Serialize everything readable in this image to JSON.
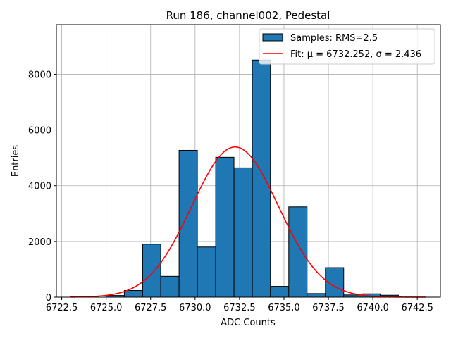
{
  "chart_data": {
    "type": "bar",
    "title": "Run 186, channel002, Pedestal",
    "xlabel": "ADC Counts",
    "ylabel": "Entries",
    "xlim": [
      6722.2,
      6743.8
    ],
    "ylim": [
      0,
      9780
    ],
    "grid": true,
    "legend_placement": "top-right",
    "x_ticks": [
      "6722.5",
      "6725.0",
      "6727.5",
      "6730.0",
      "6732.5",
      "6735.0",
      "6737.5",
      "6740.0",
      "6742.5"
    ],
    "x_tick_values": [
      6722.5,
      6725.0,
      6727.5,
      6730.0,
      6732.5,
      6735.0,
      6737.5,
      6740.0,
      6742.5
    ],
    "y_ticks": [
      "0",
      "2000",
      "4000",
      "6000",
      "8000"
    ],
    "y_tick_values": [
      0,
      2000,
      4000,
      6000,
      8000
    ],
    "bin_edges": [
      6724.99,
      6726.02,
      6727.05,
      6728.07,
      6729.1,
      6730.13,
      6731.16,
      6732.19,
      6733.22,
      6734.24,
      6735.27,
      6736.3,
      6737.33,
      6738.36,
      6739.38,
      6740.41,
      6741.44
    ],
    "counts": [
      60,
      240,
      1900,
      750,
      5270,
      1800,
      5020,
      4640,
      8510,
      390,
      3240,
      130,
      1060,
      80,
      120,
      70
    ],
    "histogram_name": "Samples: RMS=2.5",
    "fit": {
      "name": "Fit: $\\mu$ = 6732.252, $\\sigma$ = 2.436",
      "label_display": "Fit: μ = 6732.252, σ = 2.436",
      "mu": 6732.252,
      "sigma": 2.436,
      "amplitude": 5390,
      "x_range": [
        6723.0,
        6743.0
      ]
    },
    "colors": {
      "bar_fill": "#1f77b4",
      "bar_edge": "#000000",
      "fit_line": "#ff0000",
      "grid": "#b0b0b0"
    }
  }
}
